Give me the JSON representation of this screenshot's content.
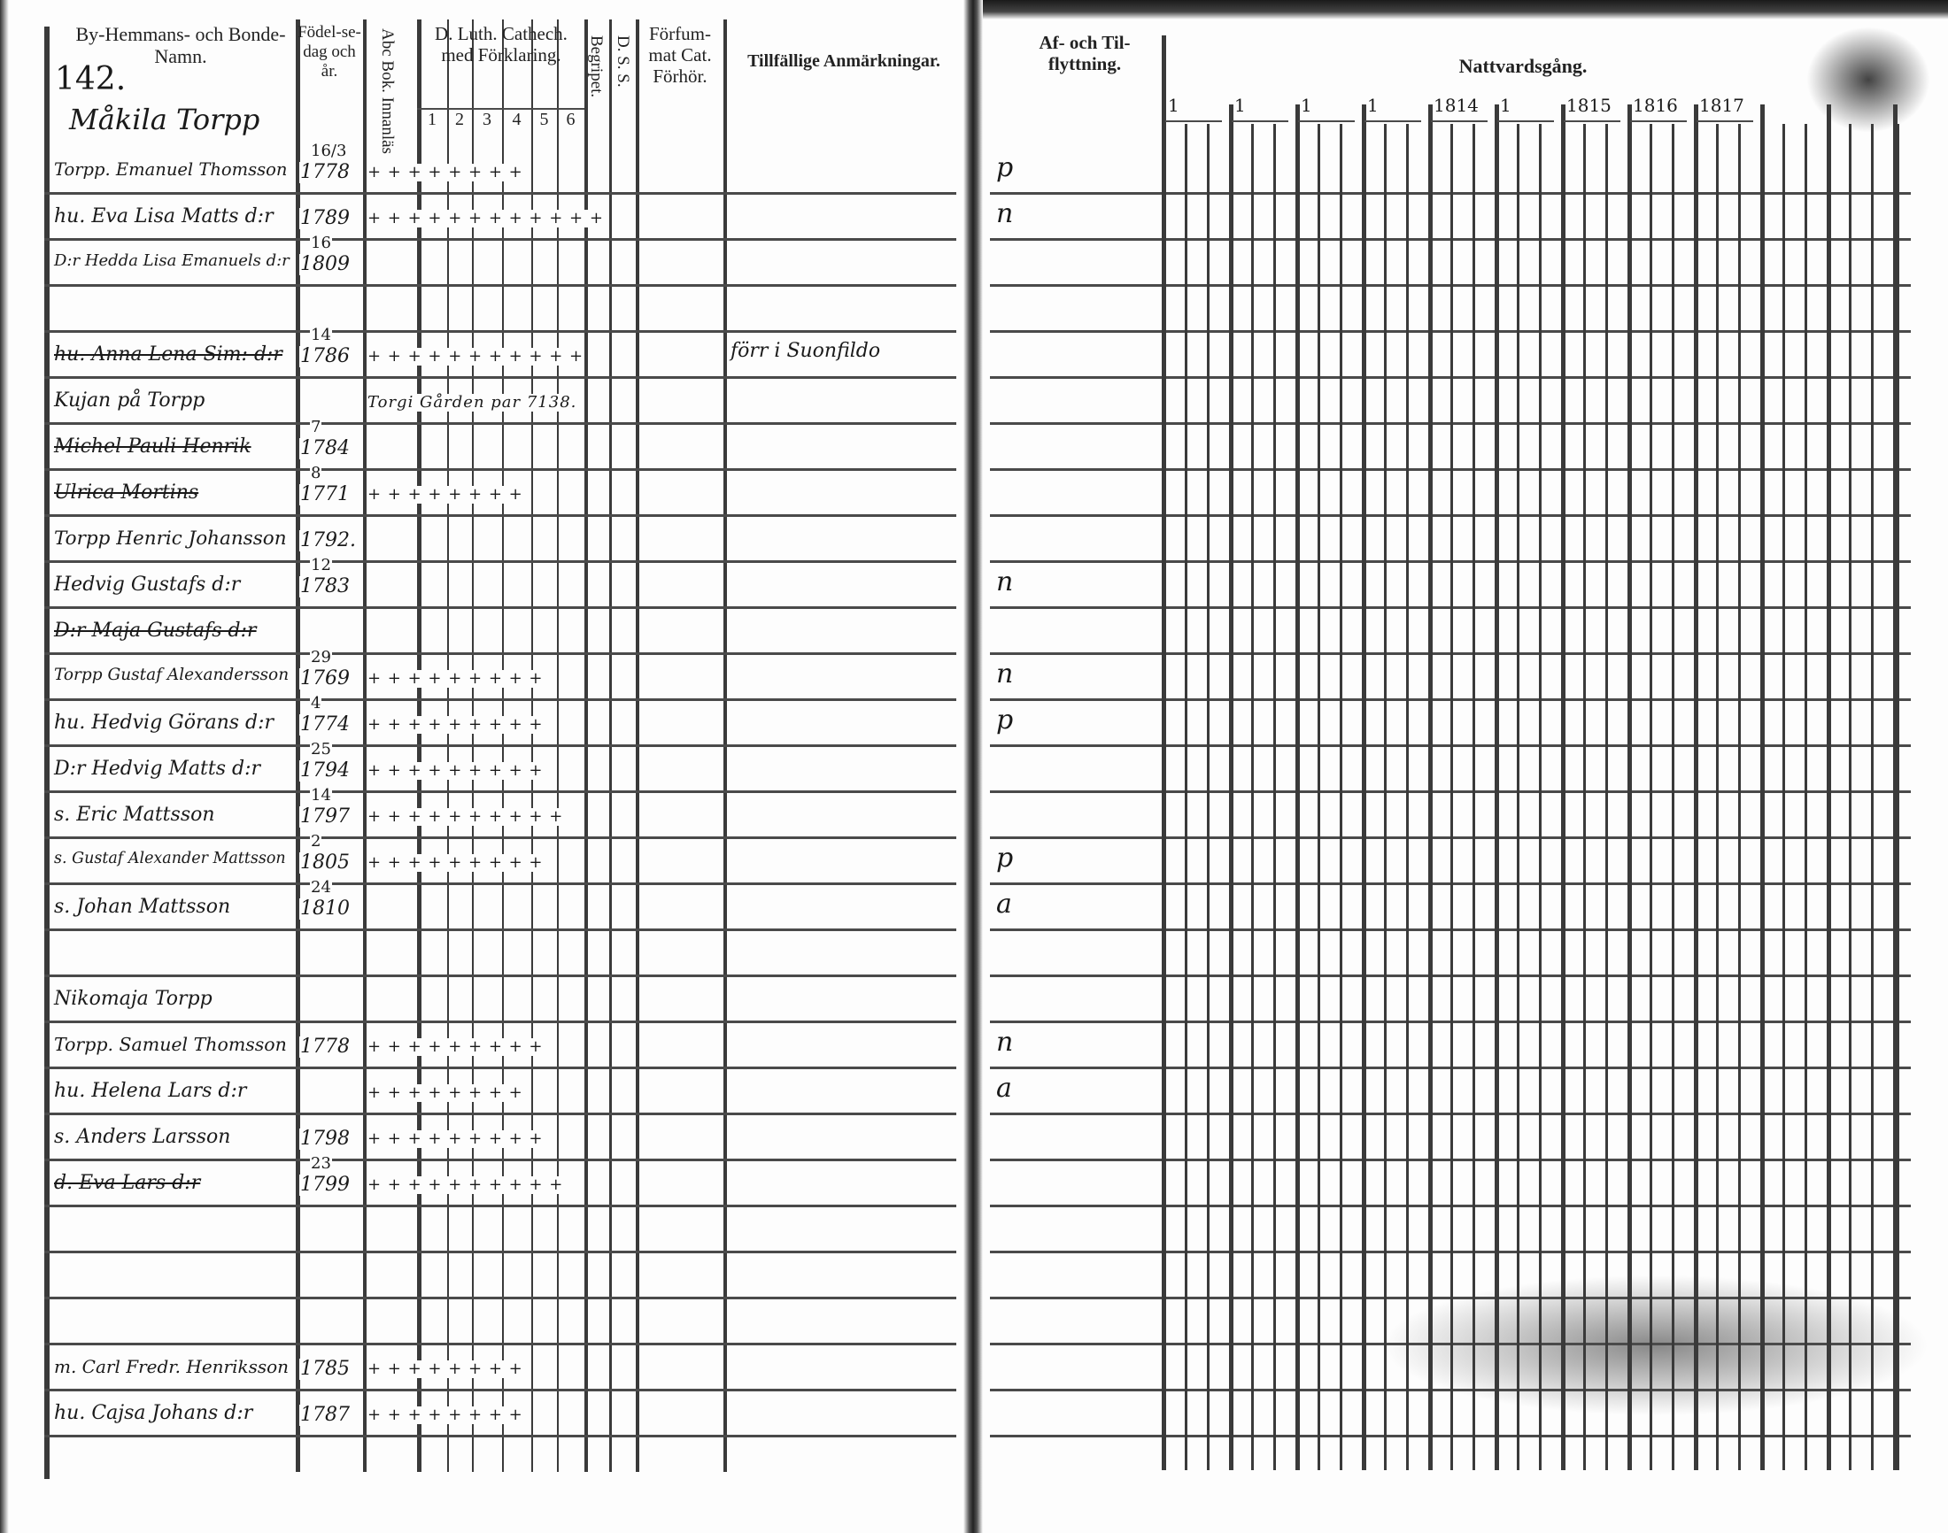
{
  "left_page": {
    "page_number": "142.",
    "headers": {
      "names": "By-Hemmans- och Bonde-Namn.",
      "birth": "Födel-se-dag och år.",
      "abc": "Abc Bok. Innanläs",
      "catechism": "D. Luth. Cathech. med Förklaring.",
      "catechism_parts": [
        "1",
        "2",
        "3",
        "4",
        "5",
        "6"
      ],
      "begripet": "Begripet.",
      "dss": "D. S. S.",
      "forsummat": "Förfum-mat Cat. Förhör.",
      "remarks": "Tillfällige Anmärkningar."
    },
    "farm_heading": "Måkila Torpp",
    "rows": [
      {
        "name": "Torpp. Emanuel Thomsson",
        "day": "16/3",
        "year": "1778",
        "marks": "+ +  + + + + +   +",
        "remark": "",
        "struck": false
      },
      {
        "name": "hu. Eva Lisa Matts d:r",
        "day": "",
        "year": "1789",
        "marks": "+ +  + + + + + + + + + +",
        "remark": "",
        "struck": false
      },
      {
        "name": "D:r Hedda Lisa Emanuels d:r",
        "day": "16",
        "year": "1809",
        "marks": "",
        "remark": "",
        "struck": false
      },
      {
        "name": "",
        "day": "",
        "year": "",
        "marks": "",
        "remark": "",
        "struck": false
      },
      {
        "name": "hu. Anna Lena Sim: d:r",
        "day": "14",
        "year": "1786",
        "marks": "+ +  + + + + + + + + +",
        "remark": "förr i Suonfildo",
        "struck": true
      },
      {
        "name": "Kujan på Torpp",
        "day": "",
        "year": "",
        "marks": "Torgi Gården  par 7138.",
        "remark": "",
        "struck": false
      },
      {
        "name": "Michel Pauli Henrik",
        "day": "7",
        "year": "1784",
        "marks": "",
        "remark": "",
        "struck": true
      },
      {
        "name": "Ulrica Mortins",
        "day": "8",
        "year": "1771",
        "marks": "+ +  + +  +  + + +",
        "remark": "",
        "struck": true
      },
      {
        "name": "Torpp Henric Johansson",
        "day": "",
        "year": "1792.",
        "marks": "",
        "remark": "",
        "struck": false
      },
      {
        "name": "Hedvig Gustafs d:r",
        "day": "12",
        "year": "1783",
        "marks": "",
        "remark": "",
        "struck": false
      },
      {
        "name": "D:r Maja Gustafs d:r",
        "day": "",
        "year": "",
        "marks": "",
        "remark": "",
        "struck": true
      },
      {
        "name": "Torpp Gustaf Alexandersson",
        "day": "29",
        "year": "1769",
        "marks": "+ +  + +  +  + +  + +",
        "remark": "",
        "struck": false
      },
      {
        "name": "hu. Hedvig Görans d:r",
        "day": "4",
        "year": "1774",
        "marks": "+ +  + +  +  +  +  +   +",
        "remark": "",
        "struck": false
      },
      {
        "name": "D:r Hedvig Matts d:r",
        "day": "25",
        "year": "1794",
        "marks": "+ +  + +  +  +  +  +   +",
        "remark": "",
        "struck": false
      },
      {
        "name": "s. Eric Mattsson",
        "day": "14",
        "year": "1797",
        "marks": "+ +  + + + + +  +  +  +",
        "remark": "",
        "struck": false
      },
      {
        "name": "s. Gustaf Alexander Mattsson",
        "day": "2",
        "year": "1805",
        "marks": "+ +  + +  + +  + +  +",
        "remark": "",
        "struck": false
      },
      {
        "name": "s. Johan Mattsson",
        "day": "24",
        "year": "1810",
        "marks": "",
        "remark": "",
        "struck": false
      },
      {
        "name": "",
        "day": "",
        "year": "",
        "marks": "",
        "remark": "",
        "struck": false
      },
      {
        "name": "Nikomaja Torpp",
        "day": "",
        "year": "",
        "marks": "",
        "remark": "",
        "struck": false
      },
      {
        "name": "Torpp. Samuel Thomsson",
        "day": "",
        "year": "1778",
        "marks": "+ +  + +  + +  + +  +",
        "remark": "",
        "struck": false
      },
      {
        "name": "hu. Helena Lars d:r",
        "day": "",
        "year": "",
        "marks": "+ +  + +  +  +  + +",
        "remark": "",
        "struck": false
      },
      {
        "name": "s. Anders Larsson",
        "day": "",
        "year": "1798",
        "marks": "+ +  + + + +  +  + +",
        "remark": "",
        "struck": false
      },
      {
        "name": "d. Eva Lars d:r",
        "day": "23",
        "year": "1799",
        "marks": "+ +  + + + +  + +  + +",
        "remark": "",
        "struck": true
      },
      {
        "name": "",
        "day": "",
        "year": "",
        "marks": "",
        "remark": "",
        "struck": false
      },
      {
        "name": "",
        "day": "",
        "year": "",
        "marks": "",
        "remark": "",
        "struck": false
      },
      {
        "name": "",
        "day": "",
        "year": "",
        "marks": "",
        "remark": "",
        "struck": false
      },
      {
        "name": "m. Carl Fredr. Henriksson",
        "day": "",
        "year": "1785",
        "marks": "+ + +  +  + + + +",
        "remark": "",
        "struck": false
      },
      {
        "name": "hu. Cajsa Johans d:r",
        "day": "",
        "year": "1787",
        "marks": "+ +  + +  + + + +",
        "remark": "",
        "struck": false
      }
    ]
  },
  "right_page": {
    "headers": {
      "moving": "Af- och Til-flyttning.",
      "communion": "Nattvardsgång."
    },
    "year_labels": [
      "1",
      "1",
      "1",
      "1",
      "1814",
      "1",
      "1815",
      "1816",
      "1817"
    ],
    "moving_marks": [
      {
        "row": 0,
        "mark": "p"
      },
      {
        "row": 1,
        "mark": "n"
      },
      {
        "row": 9,
        "mark": "n"
      },
      {
        "row": 11,
        "mark": "n"
      },
      {
        "row": 12,
        "mark": "p"
      },
      {
        "row": 15,
        "mark": "p"
      },
      {
        "row": 16,
        "mark": "a"
      },
      {
        "row": 19,
        "mark": "n"
      },
      {
        "row": 20,
        "mark": "a"
      }
    ]
  }
}
